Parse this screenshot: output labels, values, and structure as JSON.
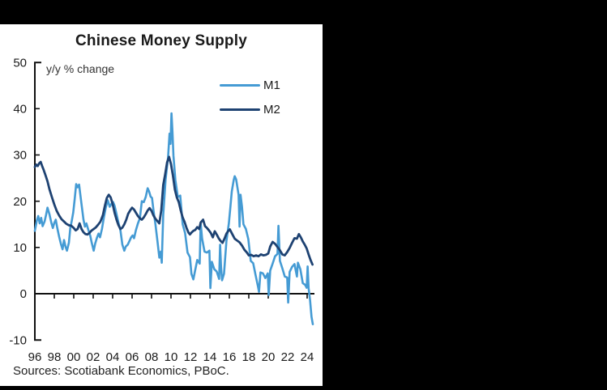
{
  "window": {
    "background": "#000000"
  },
  "chart": {
    "title": "Chinese Money Supply",
    "axis_note": "y/y % change",
    "sources": "Sources: Scotiabank Economics, PBoC.",
    "legend": [
      {
        "label": "M1",
        "color": "#459BD4"
      },
      {
        "label": "M2",
        "color": "#1E4272"
      }
    ]
  },
  "chart_data": {
    "type": "line",
    "title": "Chinese Money Supply",
    "ylabel": "y/y % change",
    "xlabel": "",
    "grid": false,
    "legend_position": "upper right inside plot",
    "axis_color": "#111111",
    "text_color": "#1a1a1a",
    "ylim": [
      -10,
      50
    ],
    "xlim": [
      1996,
      2024.75
    ],
    "y_ticks": [
      50,
      40,
      30,
      20,
      10,
      0,
      -10
    ],
    "x_ticks": [
      "96",
      "98",
      "00",
      "02",
      "04",
      "06",
      "08",
      "10",
      "12",
      "14",
      "16",
      "18",
      "20",
      "22",
      "24"
    ],
    "x_tick_years": [
      1996,
      1998,
      2000,
      2002,
      2004,
      2006,
      2008,
      2010,
      2012,
      2014,
      2016,
      2018,
      2020,
      2022,
      2024
    ],
    "series": [
      {
        "name": "M1",
        "color": "#459BD4",
        "width": 2.6,
        "points": [
          [
            1996.0,
            13.6
          ],
          [
            1996.2,
            15.8
          ],
          [
            1996.35,
            16.8
          ],
          [
            1996.5,
            15.2
          ],
          [
            1996.65,
            16.4
          ],
          [
            1996.8,
            14.6
          ],
          [
            1997.0,
            15.6
          ],
          [
            1997.15,
            17.0
          ],
          [
            1997.3,
            18.6
          ],
          [
            1997.5,
            17.2
          ],
          [
            1997.7,
            15.3
          ],
          [
            1997.85,
            14.2
          ],
          [
            1998.0,
            15.3
          ],
          [
            1998.15,
            16.0
          ],
          [
            1998.3,
            14.3
          ],
          [
            1998.5,
            12.3
          ],
          [
            1998.7,
            10.6
          ],
          [
            1998.85,
            9.6
          ],
          [
            1999.0,
            11.6
          ],
          [
            1999.15,
            10.2
          ],
          [
            1999.3,
            9.3
          ],
          [
            1999.5,
            11.0
          ],
          [
            1999.65,
            14.3
          ],
          [
            1999.8,
            15.8
          ],
          [
            1999.95,
            17.6
          ],
          [
            2000.1,
            20.5
          ],
          [
            2000.25,
            23.7
          ],
          [
            2000.4,
            23.0
          ],
          [
            2000.55,
            23.6
          ],
          [
            2000.7,
            21.0
          ],
          [
            2000.85,
            18.5
          ],
          [
            2001.0,
            16.0
          ],
          [
            2001.15,
            14.5
          ],
          [
            2001.3,
            15.2
          ],
          [
            2001.5,
            13.8
          ],
          [
            2001.7,
            12.5
          ],
          [
            2001.85,
            11.0
          ],
          [
            2002.05,
            9.3
          ],
          [
            2002.2,
            10.8
          ],
          [
            2002.4,
            12.2
          ],
          [
            2002.55,
            13.0
          ],
          [
            2002.7,
            12.2
          ],
          [
            2002.9,
            14.0
          ],
          [
            2003.1,
            16.5
          ],
          [
            2003.3,
            18.7
          ],
          [
            2003.5,
            20.2
          ],
          [
            2003.7,
            18.8
          ],
          [
            2003.9,
            19.5
          ],
          [
            2004.05,
            19.8
          ],
          [
            2004.2,
            19.0
          ],
          [
            2004.4,
            17.2
          ],
          [
            2004.6,
            15.3
          ],
          [
            2004.8,
            13.7
          ],
          [
            2005.0,
            10.6
          ],
          [
            2005.2,
            9.3
          ],
          [
            2005.35,
            10.2
          ],
          [
            2005.55,
            10.6
          ],
          [
            2005.75,
            11.5
          ],
          [
            2005.9,
            12.2
          ],
          [
            2006.05,
            12.6
          ],
          [
            2006.2,
            12.0
          ],
          [
            2006.4,
            13.8
          ],
          [
            2006.6,
            15.2
          ],
          [
            2006.8,
            16.3
          ],
          [
            2007.0,
            20.0
          ],
          [
            2007.2,
            19.8
          ],
          [
            2007.4,
            20.9
          ],
          [
            2007.6,
            22.8
          ],
          [
            2007.75,
            22.1
          ],
          [
            2007.9,
            21.0
          ],
          [
            2008.05,
            20.7
          ],
          [
            2008.2,
            18.0
          ],
          [
            2008.4,
            15.0
          ],
          [
            2008.6,
            11.5
          ],
          [
            2008.8,
            7.8
          ],
          [
            2008.95,
            9.1
          ],
          [
            2009.05,
            6.7
          ],
          [
            2009.2,
            17.0
          ],
          [
            2009.45,
            24.8
          ],
          [
            2009.7,
            29.5
          ],
          [
            2009.85,
            34.6
          ],
          [
            2009.95,
            32.4
          ],
          [
            2010.05,
            39.0
          ],
          [
            2010.15,
            35.0
          ],
          [
            2010.25,
            29.9
          ],
          [
            2010.45,
            24.6
          ],
          [
            2010.7,
            20.9
          ],
          [
            2010.95,
            21.2
          ],
          [
            2011.2,
            15.0
          ],
          [
            2011.45,
            13.1
          ],
          [
            2011.7,
            8.9
          ],
          [
            2011.95,
            7.9
          ],
          [
            2012.1,
            4.3
          ],
          [
            2012.3,
            3.1
          ],
          [
            2012.45,
            4.7
          ],
          [
            2012.7,
            7.3
          ],
          [
            2012.95,
            6.5
          ],
          [
            2013.05,
            15.3
          ],
          [
            2013.2,
            11.9
          ],
          [
            2013.45,
            9.1
          ],
          [
            2013.7,
            8.9
          ],
          [
            2013.95,
            9.3
          ],
          [
            2014.05,
            1.2
          ],
          [
            2014.2,
            6.9
          ],
          [
            2014.45,
            5.3
          ],
          [
            2014.7,
            4.8
          ],
          [
            2014.95,
            3.2
          ],
          [
            2015.05,
            10.6
          ],
          [
            2015.15,
            5.6
          ],
          [
            2015.25,
            2.9
          ],
          [
            2015.45,
            4.3
          ],
          [
            2015.7,
            11.4
          ],
          [
            2015.95,
            15.2
          ],
          [
            2016.1,
            18.6
          ],
          [
            2016.25,
            22.1
          ],
          [
            2016.45,
            24.6
          ],
          [
            2016.55,
            25.4
          ],
          [
            2016.7,
            24.7
          ],
          [
            2016.95,
            21.4
          ],
          [
            2017.05,
            14.5
          ],
          [
            2017.15,
            21.4
          ],
          [
            2017.3,
            18.8
          ],
          [
            2017.45,
            15.0
          ],
          [
            2017.7,
            14.0
          ],
          [
            2017.95,
            11.8
          ],
          [
            2018.2,
            7.1
          ],
          [
            2018.45,
            6.6
          ],
          [
            2018.7,
            4.0
          ],
          [
            2018.95,
            1.5
          ],
          [
            2019.05,
            0.4
          ],
          [
            2019.2,
            4.6
          ],
          [
            2019.45,
            4.4
          ],
          [
            2019.7,
            3.4
          ],
          [
            2019.95,
            4.4
          ],
          [
            2020.05,
            -0.3
          ],
          [
            2020.2,
            5.0
          ],
          [
            2020.45,
            6.5
          ],
          [
            2020.7,
            8.1
          ],
          [
            2020.95,
            8.6
          ],
          [
            2021.05,
            14.7
          ],
          [
            2021.2,
            7.1
          ],
          [
            2021.45,
            5.5
          ],
          [
            2021.7,
            3.7
          ],
          [
            2021.95,
            3.5
          ],
          [
            2022.05,
            -1.9
          ],
          [
            2022.2,
            4.7
          ],
          [
            2022.45,
            5.8
          ],
          [
            2022.7,
            6.4
          ],
          [
            2022.95,
            3.7
          ],
          [
            2023.05,
            6.7
          ],
          [
            2023.3,
            5.3
          ],
          [
            2023.55,
            2.3
          ],
          [
            2023.8,
            1.9
          ],
          [
            2023.95,
            1.3
          ],
          [
            2024.05,
            5.9
          ],
          [
            2024.15,
            1.2
          ],
          [
            2024.3,
            -1.4
          ],
          [
            2024.45,
            -5.0
          ],
          [
            2024.58,
            -6.6
          ]
        ]
      },
      {
        "name": "M2",
        "color": "#1E4272",
        "width": 2.8,
        "points": [
          [
            1996.0,
            27.4
          ],
          [
            1996.15,
            27.9
          ],
          [
            1996.3,
            27.6
          ],
          [
            1996.45,
            28.2
          ],
          [
            1996.6,
            28.5
          ],
          [
            1996.75,
            27.6
          ],
          [
            1996.9,
            26.8
          ],
          [
            1997.1,
            25.6
          ],
          [
            1997.3,
            24.3
          ],
          [
            1997.5,
            22.6
          ],
          [
            1997.75,
            20.9
          ],
          [
            1998.0,
            19.3
          ],
          [
            1998.25,
            17.9
          ],
          [
            1998.5,
            16.9
          ],
          [
            1998.75,
            16.1
          ],
          [
            1999.0,
            15.6
          ],
          [
            1999.25,
            15.1
          ],
          [
            1999.5,
            14.8
          ],
          [
            1999.75,
            14.7
          ],
          [
            2000.0,
            14.2
          ],
          [
            2000.2,
            13.7
          ],
          [
            2000.4,
            14.0
          ],
          [
            2000.6,
            15.2
          ],
          [
            2000.8,
            14.0
          ],
          [
            2001.0,
            13.3
          ],
          [
            2001.2,
            12.9
          ],
          [
            2001.4,
            12.8
          ],
          [
            2001.6,
            13.1
          ],
          [
            2001.8,
            13.6
          ],
          [
            2002.0,
            13.9
          ],
          [
            2002.25,
            14.3
          ],
          [
            2002.5,
            14.9
          ],
          [
            2002.75,
            15.6
          ],
          [
            2003.0,
            17.0
          ],
          [
            2003.2,
            19.0
          ],
          [
            2003.4,
            20.7
          ],
          [
            2003.6,
            21.4
          ],
          [
            2003.8,
            20.8
          ],
          [
            2004.0,
            19.4
          ],
          [
            2004.2,
            17.5
          ],
          [
            2004.4,
            16.0
          ],
          [
            2004.6,
            14.8
          ],
          [
            2004.8,
            14.0
          ],
          [
            2005.0,
            14.3
          ],
          [
            2005.2,
            15.0
          ],
          [
            2005.4,
            16.0
          ],
          [
            2005.6,
            17.3
          ],
          [
            2005.8,
            18.0
          ],
          [
            2006.0,
            18.6
          ],
          [
            2006.2,
            18.2
          ],
          [
            2006.4,
            17.5
          ],
          [
            2006.6,
            16.8
          ],
          [
            2006.8,
            16.3
          ],
          [
            2007.0,
            16.0
          ],
          [
            2007.2,
            16.5
          ],
          [
            2007.4,
            17.2
          ],
          [
            2007.6,
            18.0
          ],
          [
            2007.8,
            18.5
          ],
          [
            2008.0,
            17.9
          ],
          [
            2008.2,
            16.9
          ],
          [
            2008.4,
            16.2
          ],
          [
            2008.6,
            15.7
          ],
          [
            2008.8,
            15.2
          ],
          [
            2009.0,
            18.0
          ],
          [
            2009.2,
            23.5
          ],
          [
            2009.4,
            25.8
          ],
          [
            2009.6,
            28.4
          ],
          [
            2009.8,
            29.6
          ],
          [
            2010.0,
            28.0
          ],
          [
            2010.2,
            25.5
          ],
          [
            2010.4,
            22.5
          ],
          [
            2010.6,
            20.8
          ],
          [
            2010.8,
            19.8
          ],
          [
            2011.0,
            18.0
          ],
          [
            2011.2,
            16.5
          ],
          [
            2011.4,
            15.5
          ],
          [
            2011.6,
            14.2
          ],
          [
            2011.8,
            13.2
          ],
          [
            2011.95,
            12.8
          ],
          [
            2012.1,
            13.2
          ],
          [
            2012.3,
            13.6
          ],
          [
            2012.5,
            13.8
          ],
          [
            2012.7,
            14.4
          ],
          [
            2012.9,
            14.0
          ],
          [
            2013.05,
            15.4
          ],
          [
            2013.3,
            16.0
          ],
          [
            2013.5,
            14.6
          ],
          [
            2013.7,
            14.2
          ],
          [
            2013.9,
            13.7
          ],
          [
            2014.1,
            13.1
          ],
          [
            2014.3,
            12.2
          ],
          [
            2014.5,
            13.5
          ],
          [
            2014.7,
            12.8
          ],
          [
            2014.9,
            12.0
          ],
          [
            2015.1,
            11.4
          ],
          [
            2015.3,
            11.0
          ],
          [
            2015.5,
            11.9
          ],
          [
            2015.7,
            13.0
          ],
          [
            2015.9,
            13.6
          ],
          [
            2016.05,
            13.9
          ],
          [
            2016.3,
            12.9
          ],
          [
            2016.55,
            11.9
          ],
          [
            2016.8,
            11.5
          ],
          [
            2017.05,
            11.1
          ],
          [
            2017.3,
            10.4
          ],
          [
            2017.55,
            9.5
          ],
          [
            2017.8,
            8.9
          ],
          [
            2018.0,
            8.3
          ],
          [
            2018.25,
            8.4
          ],
          [
            2018.5,
            8.1
          ],
          [
            2018.75,
            8.3
          ],
          [
            2019.0,
            8.1
          ],
          [
            2019.25,
            8.5
          ],
          [
            2019.5,
            8.3
          ],
          [
            2019.75,
            8.4
          ],
          [
            2020.0,
            8.7
          ],
          [
            2020.2,
            10.2
          ],
          [
            2020.45,
            11.2
          ],
          [
            2020.7,
            10.8
          ],
          [
            2020.95,
            10.1
          ],
          [
            2021.2,
            9.4
          ],
          [
            2021.45,
            8.5
          ],
          [
            2021.7,
            8.3
          ],
          [
            2021.95,
            9.0
          ],
          [
            2022.2,
            9.9
          ],
          [
            2022.45,
            11.0
          ],
          [
            2022.7,
            12.0
          ],
          [
            2022.95,
            11.9
          ],
          [
            2023.15,
            12.9
          ],
          [
            2023.35,
            12.2
          ],
          [
            2023.55,
            11.3
          ],
          [
            2023.75,
            10.6
          ],
          [
            2023.95,
            9.8
          ],
          [
            2024.15,
            8.5
          ],
          [
            2024.35,
            7.3
          ],
          [
            2024.55,
            6.3
          ]
        ]
      }
    ]
  }
}
